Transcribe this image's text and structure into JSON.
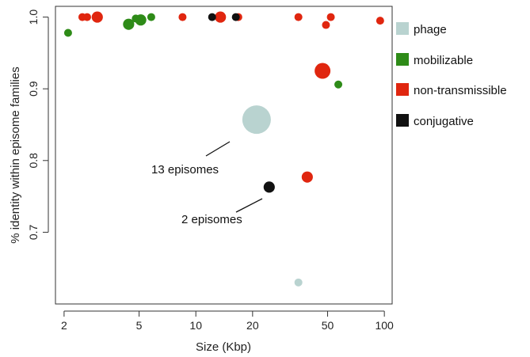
{
  "chart_data": {
    "type": "scatter",
    "xlabel": "Size (Kbp)",
    "ylabel": "% identity within episome families",
    "x_scale": "log",
    "xlim": [
      1.8,
      110
    ],
    "ylim": [
      0.6,
      1.015
    ],
    "x_ticks": [
      2,
      5,
      10,
      20,
      50,
      100
    ],
    "y_ticks": [
      0.7,
      0.8,
      0.9,
      1.0
    ],
    "y_tick_labels": [
      "0.7",
      "0.8",
      "0.9",
      "1.0"
    ],
    "grid": false,
    "legend_position": "right",
    "series": [
      {
        "name": "phage",
        "color": "#b9d3d0",
        "points": [
          {
            "x": 21,
            "y": 0.857,
            "size": 13
          },
          {
            "x": 35,
            "y": 0.63,
            "size": 1
          }
        ]
      },
      {
        "name": "mobilizable",
        "color": "#2e8b18",
        "points": [
          {
            "x": 2.1,
            "y": 0.978,
            "size": 1
          },
          {
            "x": 4.4,
            "y": 0.99,
            "size": 2
          },
          {
            "x": 4.8,
            "y": 0.998,
            "size": 1
          },
          {
            "x": 5.1,
            "y": 0.996,
            "size": 2
          },
          {
            "x": 5.8,
            "y": 1.0,
            "size": 1
          },
          {
            "x": 57,
            "y": 0.906,
            "size": 1
          }
        ]
      },
      {
        "name": "non-transmissible",
        "color": "#e0260f",
        "points": [
          {
            "x": 2.5,
            "y": 1.0,
            "size": 1
          },
          {
            "x": 2.65,
            "y": 1.0,
            "size": 1
          },
          {
            "x": 3.0,
            "y": 1.0,
            "size": 2
          },
          {
            "x": 8.5,
            "y": 1.0,
            "size": 1
          },
          {
            "x": 13.5,
            "y": 1.0,
            "size": 2
          },
          {
            "x": 16.8,
            "y": 1.0,
            "size": 1
          },
          {
            "x": 35,
            "y": 1.0,
            "size": 1
          },
          {
            "x": 49,
            "y": 0.989,
            "size": 1
          },
          {
            "x": 52,
            "y": 1.0,
            "size": 1
          },
          {
            "x": 47,
            "y": 0.925,
            "size": 4
          },
          {
            "x": 39,
            "y": 0.777,
            "size": 2
          },
          {
            "x": 95,
            "y": 0.995,
            "size": 1
          }
        ]
      },
      {
        "name": "conjugative",
        "color": "#111111",
        "points": [
          {
            "x": 12.2,
            "y": 1.0,
            "size": 1
          },
          {
            "x": 16.3,
            "y": 1.0,
            "size": 1
          },
          {
            "x": 24.5,
            "y": 0.763,
            "size": 2
          }
        ]
      }
    ],
    "annotations": [
      {
        "text": "13 episomes",
        "target_x": 21,
        "target_y": 0.857
      },
      {
        "text": "2 episomes",
        "target_x": 24.5,
        "target_y": 0.763
      }
    ]
  }
}
